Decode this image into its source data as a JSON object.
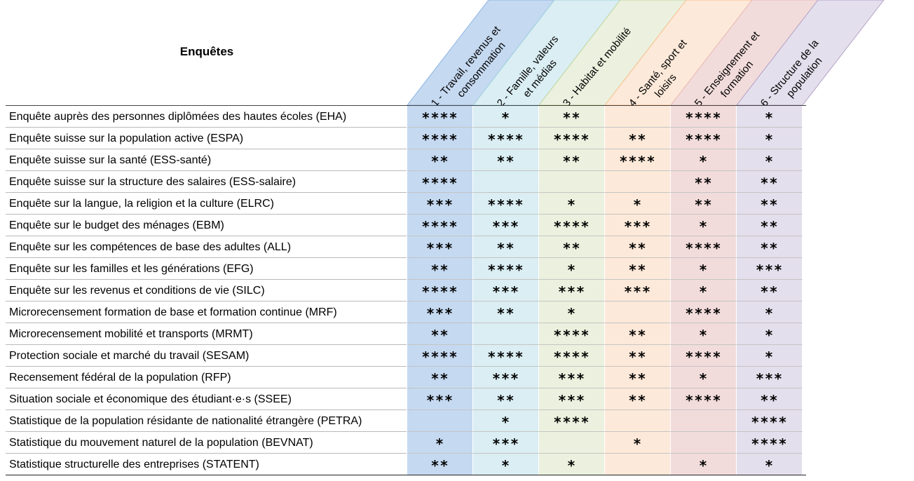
{
  "header": {
    "title": "Enquêtes"
  },
  "columns": [
    {
      "lines": [
        "1 - Travail, revenus et",
        "consommation"
      ],
      "color": "#c5d9f1",
      "edge": "#8eb4e3"
    },
    {
      "lines": [
        "2 - Famille, valeurs",
        "et médias"
      ],
      "color": "#daeef3",
      "edge": "#9fd1de"
    },
    {
      "lines": [
        "3 - Habitat et mobilité"
      ],
      "color": "#ebf1de",
      "edge": "#c3d69b"
    },
    {
      "lines": [
        "4 - Santé, sport et",
        "loisirs"
      ],
      "color": "#fde9d9",
      "edge": "#fac090"
    },
    {
      "lines": [
        "5 - Enseignement et",
        "formation"
      ],
      "color": "#f2dcdb",
      "edge": "#e6b9b8"
    },
    {
      "lines": [
        "6 - Structure de la",
        "population"
      ],
      "color": "#e4dfec",
      "edge": "#b3a2c7"
    }
  ],
  "rows": [
    {
      "label": "Enquête auprès des personnes diplômées des hautes écoles (EHA)",
      "ratings": [
        "****",
        "*",
        "**",
        "",
        "****",
        "*"
      ]
    },
    {
      "label": "Enquête suisse sur la population active (ESPA)",
      "ratings": [
        "****",
        "****",
        "****",
        "**",
        "****",
        "*"
      ]
    },
    {
      "label": "Enquête suisse sur la santé (ESS-santé)",
      "ratings": [
        "**",
        "**",
        "**",
        "****",
        "*",
        "*"
      ]
    },
    {
      "label": "Enquête suisse sur la structure des salaires (ESS-salaire)",
      "ratings": [
        "****",
        "",
        "",
        "",
        "**",
        "**"
      ]
    },
    {
      "label": "Enquête sur la langue, la religion et la culture (ELRC)",
      "ratings": [
        "***",
        "****",
        "*",
        "*",
        "**",
        "**"
      ]
    },
    {
      "label": "Enquête sur le budget des ménages (EBM)",
      "ratings": [
        "****",
        "***",
        "****",
        "***",
        "*",
        "**"
      ]
    },
    {
      "label": "Enquête sur les compétences de base des adultes (ALL)",
      "ratings": [
        "***",
        "**",
        "**",
        "**",
        "****",
        "**"
      ]
    },
    {
      "label": "Enquête sur les familles et les générations (EFG)",
      "ratings": [
        "**",
        "****",
        "*",
        "**",
        "*",
        "***"
      ]
    },
    {
      "label": "Enquête sur les revenus et conditions de vie (SILC)",
      "ratings": [
        "****",
        "***",
        "***",
        "***",
        "*",
        "**"
      ]
    },
    {
      "label": "Microrecensement formation de base et formation continue (MRF)",
      "ratings": [
        "***",
        "**",
        "*",
        "",
        "****",
        "*"
      ]
    },
    {
      "label": "Microrecensement mobilité et transports (MRMT)",
      "ratings": [
        "**",
        "",
        "****",
        "**",
        "*",
        "*"
      ]
    },
    {
      "label": "Protection sociale et marché du travail (SESAM)",
      "ratings": [
        "****",
        "****",
        "****",
        "**",
        "****",
        "*"
      ]
    },
    {
      "label": "Recensement fédéral de la population (RFP)",
      "ratings": [
        "**",
        "***",
        "***",
        "**",
        "*",
        "***"
      ]
    },
    {
      "label": "Situation sociale et économique des étudiant·e·s (SSEE)",
      "ratings": [
        "***",
        "**",
        "***",
        "**",
        "****",
        "**"
      ]
    },
    {
      "label": "Statistique de la population résidante de nationalité étrangère (PETRA)",
      "ratings": [
        "",
        "*",
        "****",
        "",
        "",
        "****"
      ]
    },
    {
      "label": "Statistique du mouvement naturel de la population (BEVNAT)",
      "ratings": [
        "*",
        "***",
        "",
        "*",
        "",
        "****"
      ]
    },
    {
      "label": "Statistique structurelle des entreprises (STATENT)",
      "ratings": [
        "**",
        "*",
        "*",
        "",
        "*",
        "*"
      ]
    }
  ]
}
